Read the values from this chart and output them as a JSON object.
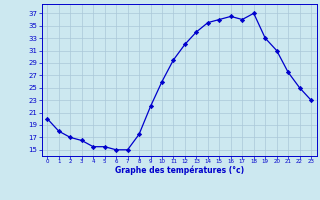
{
  "hours": [
    0,
    1,
    2,
    3,
    4,
    5,
    6,
    7,
    8,
    9,
    10,
    11,
    12,
    13,
    14,
    15,
    16,
    17,
    18,
    19,
    20,
    21,
    22,
    23
  ],
  "temperatures": [
    20,
    18,
    17,
    16.5,
    15.5,
    15.5,
    15,
    15,
    17.5,
    22,
    26,
    29.5,
    32,
    34,
    35.5,
    36,
    36.5,
    36,
    37,
    33,
    31,
    27.5,
    25,
    23
  ],
  "line_color": "#0000cc",
  "marker": "D",
  "marker_size": 2.2,
  "bg_color": "#cce8f0",
  "grid_color": "#aac8d8",
  "ylabel_values": [
    15,
    17,
    19,
    21,
    23,
    25,
    27,
    29,
    31,
    33,
    35,
    37
  ],
  "xlabel": "Graphe des températures (°c)",
  "ylim": [
    14,
    38.5
  ],
  "xlim": [
    -0.5,
    23.5
  ],
  "axis_label_color": "#0000cc"
}
